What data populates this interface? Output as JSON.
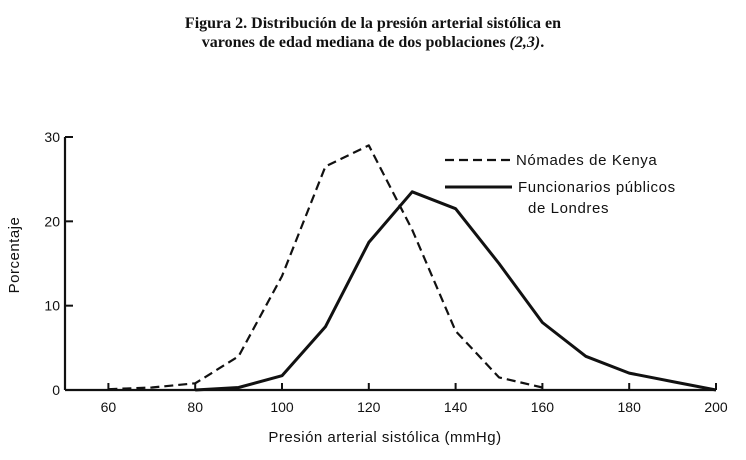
{
  "figure": {
    "title_line1": "Figura 2.  Distribución de la presión arterial sistólica en",
    "title_line2_main": "varones de edad mediana de dos poblaciones ",
    "title_line2_refs": "(2,3)",
    "title_line2_end": "."
  },
  "chart_data": {
    "type": "line",
    "xlabel": "Presión arterial sistólica (mmHg)",
    "ylabel": "Porcentaje",
    "xlim": [
      50,
      200
    ],
    "ylim": [
      0,
      30
    ],
    "x_ticks": [
      60,
      80,
      100,
      120,
      140,
      160,
      180,
      200
    ],
    "y_ticks": [
      0,
      10,
      20,
      30
    ],
    "grid": false,
    "legend_position": "top-right",
    "series": [
      {
        "name": "Nómades de Kenya",
        "style": "dashed",
        "color": "#111111",
        "x": [
          60,
          70,
          80,
          90,
          100,
          110,
          120,
          130,
          140,
          150,
          160
        ],
        "y": [
          0.1,
          0.3,
          0.8,
          4,
          13.5,
          26.5,
          29,
          19,
          7,
          1.5,
          0.3
        ]
      },
      {
        "name_lines": [
          "Funcionarios públicos",
          "de Londres"
        ],
        "style": "solid",
        "color": "#111111",
        "x": [
          80,
          90,
          100,
          110,
          120,
          130,
          140,
          150,
          160,
          170,
          180,
          190,
          200
        ],
        "y": [
          0,
          0.3,
          1.7,
          7.5,
          17.5,
          23.5,
          21.5,
          15,
          8,
          4,
          2,
          1,
          0
        ]
      }
    ]
  }
}
